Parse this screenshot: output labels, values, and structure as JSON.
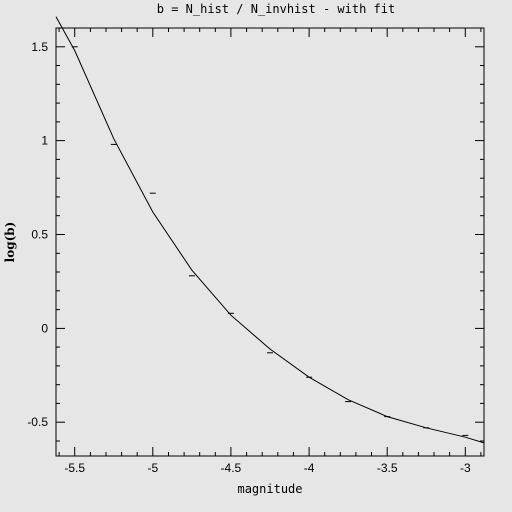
{
  "chart_data": {
    "type": "scatter",
    "title": "b = N_hist / N_invhist - with fit",
    "xlabel": "magnitude",
    "ylabel": "log(b)",
    "xlim": [
      -5.62,
      -2.88
    ],
    "ylim": [
      -0.68,
      1.6
    ],
    "x_ticks": [
      -5.5,
      -5,
      -4.5,
      -4,
      -3.5,
      -3
    ],
    "x_tick_labels": [
      "-5.5",
      "-5",
      "-4.5",
      "-4",
      "-3.5",
      "-3"
    ],
    "y_ticks": [
      -0.5,
      0,
      0.5,
      1,
      1.5
    ],
    "y_tick_labels": [
      "-0.5",
      "0",
      "0.5",
      "1",
      "1.5"
    ],
    "series": [
      {
        "kind": "points",
        "x": [
          -5.5,
          -5.25,
          -5.0,
          -4.75,
          -4.5,
          -4.25,
          -4.0,
          -3.75,
          -3.5,
          -3.25,
          -3.0
        ],
        "y": [
          1.5,
          0.98,
          0.72,
          0.28,
          0.08,
          -0.13,
          -0.26,
          -0.39,
          -0.47,
          -0.53,
          -0.57
        ]
      },
      {
        "kind": "fit",
        "x": [
          -5.62,
          -5.5,
          -5.25,
          -5.0,
          -4.75,
          -4.5,
          -4.25,
          -4.0,
          -3.75,
          -3.5,
          -3.25,
          -3.0,
          -2.88
        ],
        "y": [
          1.66,
          1.48,
          1.01,
          0.62,
          0.31,
          0.07,
          -0.11,
          -0.26,
          -0.38,
          -0.47,
          -0.53,
          -0.58,
          -0.61
        ]
      }
    ],
    "grid": false,
    "legend": "none"
  }
}
